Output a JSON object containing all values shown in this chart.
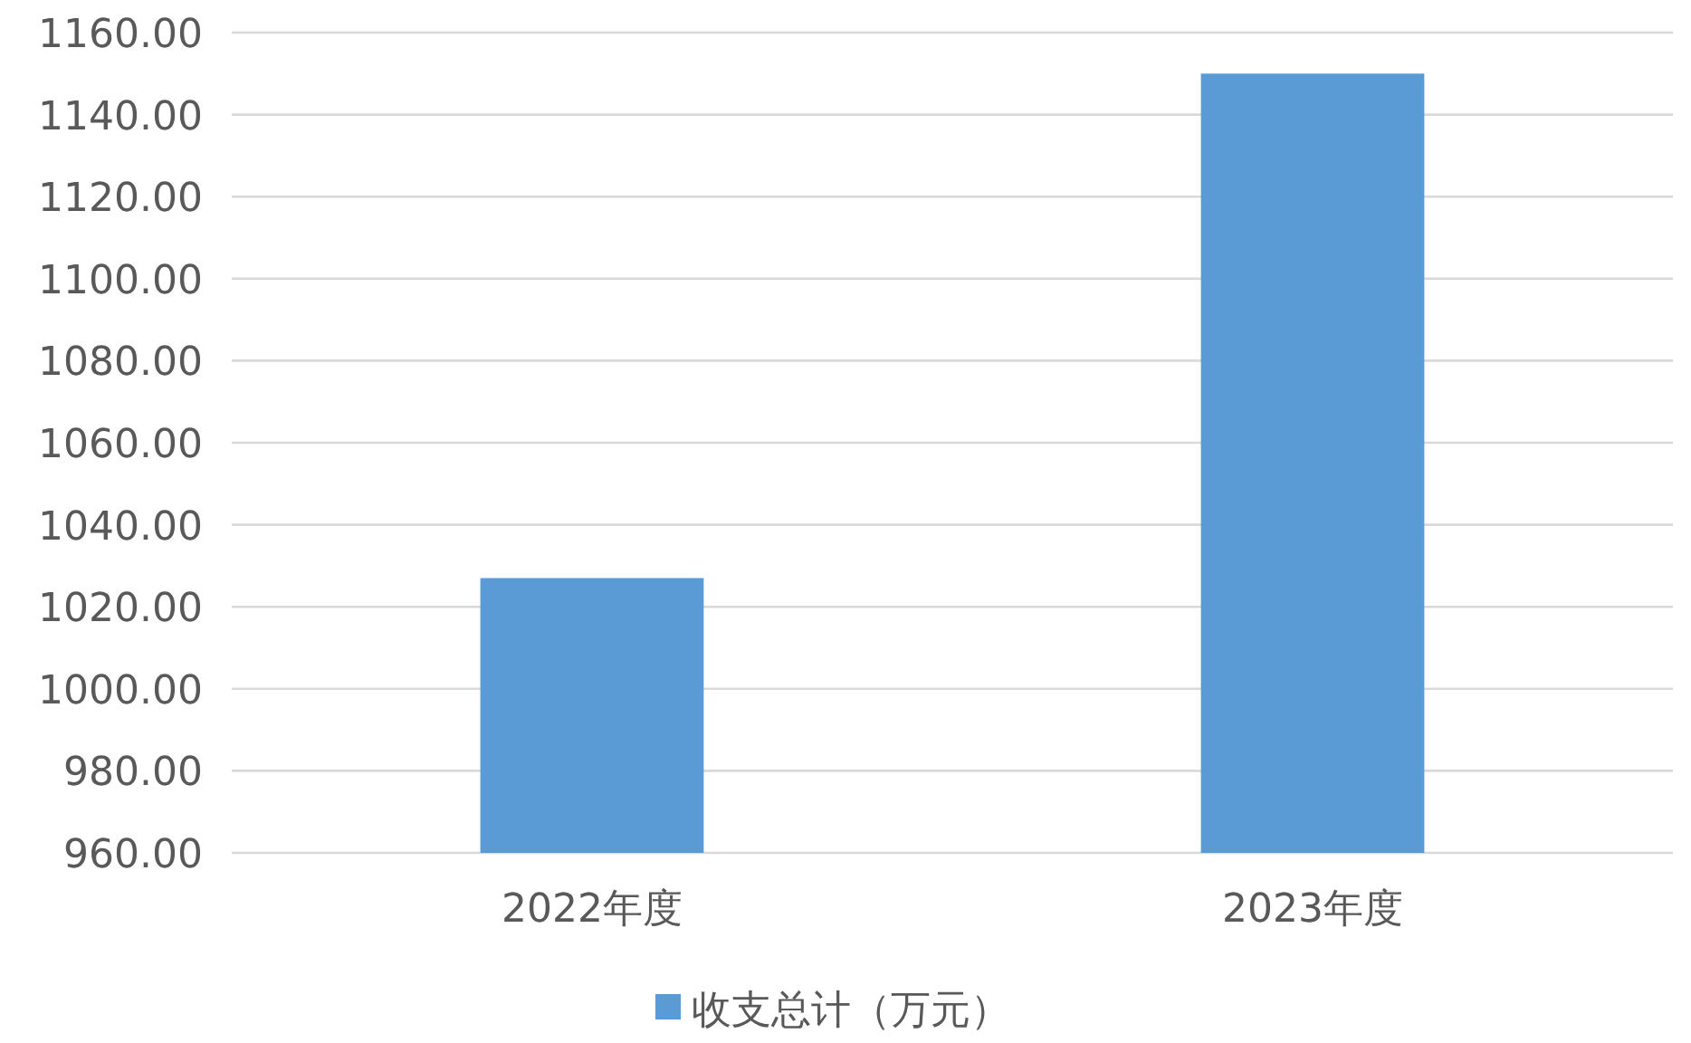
{
  "chart_data": {
    "type": "bar",
    "categories": [
      "2022年度",
      "2023年度"
    ],
    "series": [
      {
        "name": "收支总计（万元）",
        "color": "#5b9bd5",
        "values": [
          1027,
          1150
        ]
      }
    ],
    "ylim": [
      960,
      1160
    ],
    "yticks": [
      {
        "value": 960,
        "label": "960.00"
      },
      {
        "value": 980,
        "label": "980.00"
      },
      {
        "value": 1000,
        "label": "1000.00"
      },
      {
        "value": 1020,
        "label": "1020.00"
      },
      {
        "value": 1040,
        "label": "1040.00"
      },
      {
        "value": 1060,
        "label": "1060.00"
      },
      {
        "value": 1080,
        "label": "1080.00"
      },
      {
        "value": 1100,
        "label": "1100.00"
      },
      {
        "value": 1120,
        "label": "1120.00"
      },
      {
        "value": 1140,
        "label": "1140.00"
      },
      {
        "value": 1160,
        "label": "1160.00"
      }
    ],
    "grid": "y",
    "legend": "bottom"
  }
}
